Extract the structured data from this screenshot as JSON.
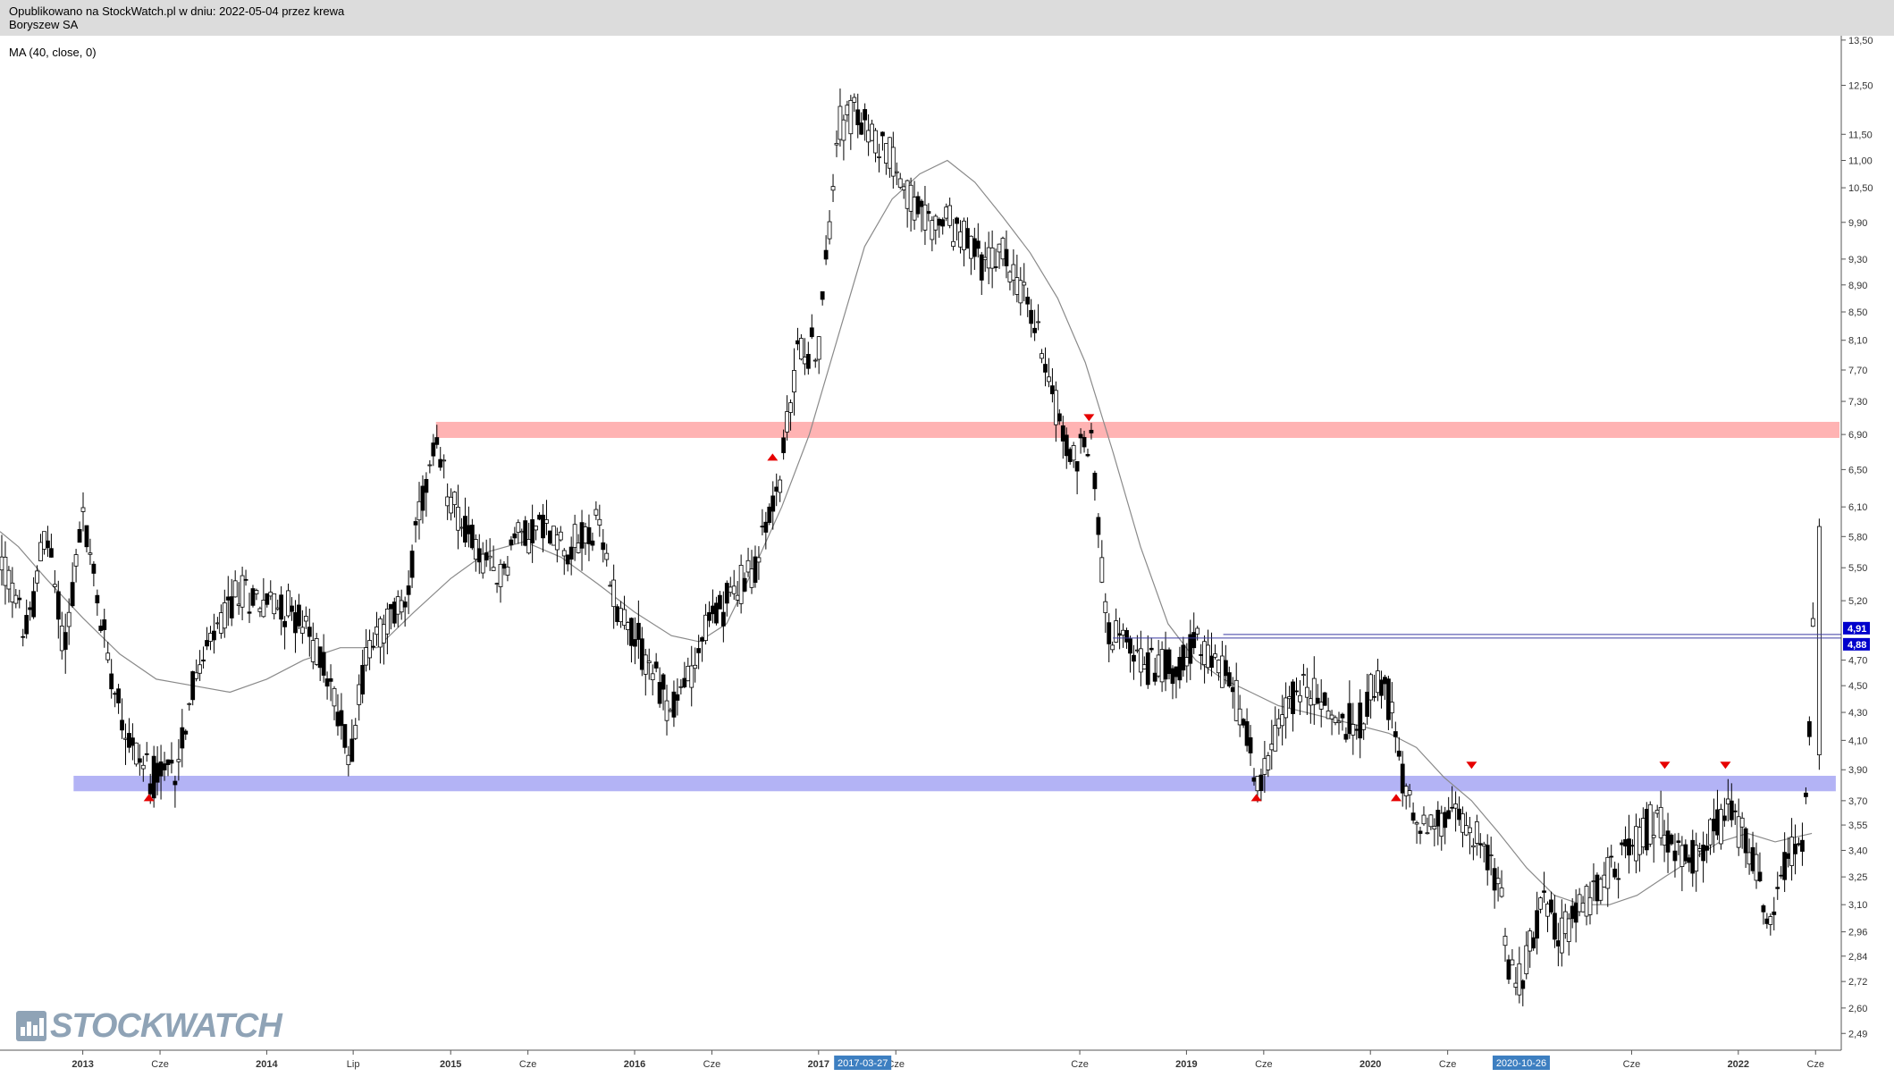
{
  "header": {
    "published_line": "Opublikowano na StockWatch.pl w dniu: 2022-05-04 przez krewa",
    "instrument": "Boryszew SA"
  },
  "indicator_label": "MA (40, close, 0)",
  "logo_text": "STOCKWATCH",
  "colors": {
    "resistance_zone": "#ffb3b3",
    "support_zone": "#b3b3f5",
    "horizontal_line": "#3a3aa0",
    "price_tag": "#0000cc",
    "date_tag": "#3d7fc1",
    "arrow": "#e60000",
    "candles": "#000000",
    "ma_line": "#8a8a8a"
  },
  "chart_data": {
    "type": "candlestick",
    "frequency": "weekly",
    "y_scale": "log",
    "ylim": [
      2.42,
      13.6
    ],
    "y_ticks": [
      "13,50",
      "12,50",
      "11,50",
      "11,00",
      "10,50",
      "9,90",
      "9,30",
      "8,90",
      "8,50",
      "8,10",
      "7,70",
      "7,30",
      "6,90",
      "6,50",
      "6,10",
      "5,80",
      "5,50",
      "5,20",
      "4,91",
      "4,88",
      "4,70",
      "4,50",
      "4,30",
      "4,10",
      "3,90",
      "3,70",
      "3,55",
      "3,40",
      "3,25",
      "3,10",
      "2,96",
      "2,84",
      "2,72",
      "2,60",
      "2,49"
    ],
    "y_tick_values": [
      13.5,
      12.5,
      11.5,
      11.0,
      10.5,
      9.9,
      9.3,
      8.9,
      8.5,
      8.1,
      7.7,
      7.3,
      6.9,
      6.5,
      6.1,
      5.8,
      5.5,
      5.2,
      4.91,
      4.88,
      4.7,
      4.5,
      4.3,
      4.1,
      3.9,
      3.7,
      3.55,
      3.4,
      3.25,
      3.1,
      2.96,
      2.84,
      2.72,
      2.6,
      2.49
    ],
    "highlighted_prices": [
      {
        "label": "4,91",
        "value": 4.91
      },
      {
        "label": "4,88",
        "value": 4.88
      }
    ],
    "time_range": [
      2012.55,
      2022.55
    ],
    "x_labels": [
      {
        "label": "2013",
        "t": 2013.0,
        "bold": true
      },
      {
        "label": "Cze",
        "t": 2013.42
      },
      {
        "label": "2014",
        "t": 2014.0,
        "bold": true
      },
      {
        "label": "Lip",
        "t": 2014.47
      },
      {
        "label": "2015",
        "t": 2015.0,
        "bold": true
      },
      {
        "label": "Cze",
        "t": 2015.42
      },
      {
        "label": "2016",
        "t": 2016.0,
        "bold": true
      },
      {
        "label": "Cze",
        "t": 2016.42
      },
      {
        "label": "2017",
        "t": 2017.0,
        "bold": true
      },
      {
        "label": "Cze",
        "t": 2017.42
      },
      {
        "label": "Cze",
        "t": 2018.42
      },
      {
        "label": "2019",
        "t": 2019.0,
        "bold": true
      },
      {
        "label": "Cze",
        "t": 2019.42
      },
      {
        "label": "2020",
        "t": 2020.0,
        "bold": true
      },
      {
        "label": "Cze",
        "t": 2020.42
      },
      {
        "label": "Cze",
        "t": 2021.42
      },
      {
        "label": "2022",
        "t": 2022.0,
        "bold": true
      },
      {
        "label": "Cze",
        "t": 2022.42
      }
    ],
    "date_tags": [
      {
        "label": "2017-03-27",
        "t": 2017.24
      },
      {
        "label": "2020-10-26",
        "t": 2020.82
      }
    ],
    "price_path": [
      [
        2012.55,
        5.6
      ],
      [
        2012.7,
        4.9
      ],
      [
        2012.8,
        5.9
      ],
      [
        2012.9,
        4.8
      ],
      [
        2013.0,
        6.0
      ],
      [
        2013.1,
        5.0
      ],
      [
        2013.25,
        4.1
      ],
      [
        2013.38,
        3.85
      ],
      [
        2013.5,
        3.9
      ],
      [
        2013.6,
        4.5
      ],
      [
        2013.75,
        5.0
      ],
      [
        2013.85,
        5.3
      ],
      [
        2014.0,
        5.2
      ],
      [
        2014.15,
        5.1
      ],
      [
        2014.3,
        4.7
      ],
      [
        2014.38,
        4.35
      ],
      [
        2014.45,
        4.0
      ],
      [
        2014.55,
        4.8
      ],
      [
        2014.75,
        5.2
      ],
      [
        2014.85,
        6.2
      ],
      [
        2014.92,
        6.7
      ],
      [
        2015.0,
        6.2
      ],
      [
        2015.1,
        5.8
      ],
      [
        2015.25,
        5.35
      ],
      [
        2015.35,
        5.8
      ],
      [
        2015.5,
        5.9
      ],
      [
        2015.65,
        5.7
      ],
      [
        2015.8,
        5.9
      ],
      [
        2015.9,
        5.2
      ],
      [
        2016.0,
        4.9
      ],
      [
        2016.1,
        4.6
      ],
      [
        2016.2,
        4.3
      ],
      [
        2016.3,
        4.6
      ],
      [
        2016.4,
        5.0
      ],
      [
        2016.55,
        5.3
      ],
      [
        2016.65,
        5.5
      ],
      [
        2016.72,
        5.9
      ],
      [
        2016.8,
        6.5
      ],
      [
        2016.88,
        7.9
      ],
      [
        2016.95,
        8.0
      ],
      [
        2017.0,
        8.0
      ],
      [
        2017.05,
        9.5
      ],
      [
        2017.1,
        11.7
      ],
      [
        2017.2,
        11.9
      ],
      [
        2017.28,
        11.5
      ],
      [
        2017.38,
        11.2
      ],
      [
        2017.48,
        10.4
      ],
      [
        2017.58,
        9.9
      ],
      [
        2017.7,
        9.9
      ],
      [
        2017.8,
        9.6
      ],
      [
        2017.9,
        9.2
      ],
      [
        2018.0,
        9.4
      ],
      [
        2018.08,
        9.0
      ],
      [
        2018.15,
        8.5
      ],
      [
        2018.22,
        8.0
      ],
      [
        2018.3,
        7.2
      ],
      [
        2018.36,
        6.6
      ],
      [
        2018.42,
        6.7
      ],
      [
        2018.48,
        6.9
      ],
      [
        2018.52,
        5.9
      ],
      [
        2018.57,
        5.0
      ],
      [
        2018.67,
        4.8
      ],
      [
        2018.8,
        4.65
      ],
      [
        2018.95,
        4.7
      ],
      [
        2019.05,
        4.8
      ],
      [
        2019.12,
        4.75
      ],
      [
        2019.2,
        4.6
      ],
      [
        2019.3,
        4.3
      ],
      [
        2019.38,
        3.85
      ],
      [
        2019.45,
        3.95
      ],
      [
        2019.55,
        4.4
      ],
      [
        2019.65,
        4.5
      ],
      [
        2019.75,
        4.35
      ],
      [
        2019.85,
        4.2
      ],
      [
        2019.95,
        4.25
      ],
      [
        2020.03,
        4.6
      ],
      [
        2020.1,
        4.4
      ],
      [
        2020.18,
        3.8
      ],
      [
        2020.28,
        3.55
      ],
      [
        2020.38,
        3.55
      ],
      [
        2020.48,
        3.6
      ],
      [
        2020.55,
        3.55
      ],
      [
        2020.62,
        3.4
      ],
      [
        2020.7,
        3.2
      ],
      [
        2020.75,
        2.8
      ],
      [
        2020.8,
        2.7
      ],
      [
        2020.88,
        2.95
      ],
      [
        2020.95,
        3.1
      ],
      [
        2021.05,
        2.95
      ],
      [
        2021.15,
        3.1
      ],
      [
        2021.25,
        3.2
      ],
      [
        2021.35,
        3.35
      ],
      [
        2021.45,
        3.45
      ],
      [
        2021.55,
        3.6
      ],
      [
        2021.65,
        3.4
      ],
      [
        2021.75,
        3.35
      ],
      [
        2021.85,
        3.5
      ],
      [
        2021.95,
        3.6
      ],
      [
        2022.05,
        3.45
      ],
      [
        2022.12,
        3.2
      ],
      [
        2022.18,
        2.95
      ],
      [
        2022.25,
        3.35
      ],
      [
        2022.32,
        3.45
      ],
      [
        2022.36,
        3.5
      ],
      [
        2022.38,
        3.9
      ],
      [
        2022.4,
        4.6
      ],
      [
        2022.42,
        5.7
      ]
    ],
    "ma_path": [
      [
        2012.55,
        5.85
      ],
      [
        2012.65,
        5.7
      ],
      [
        2012.8,
        5.4
      ],
      [
        2013.0,
        5.05
      ],
      [
        2013.2,
        4.75
      ],
      [
        2013.4,
        4.55
      ],
      [
        2013.6,
        4.5
      ],
      [
        2013.8,
        4.45
      ],
      [
        2014.0,
        4.55
      ],
      [
        2014.2,
        4.7
      ],
      [
        2014.4,
        4.8
      ],
      [
        2014.6,
        4.8
      ],
      [
        2014.8,
        5.1
      ],
      [
        2015.0,
        5.4
      ],
      [
        2015.2,
        5.65
      ],
      [
        2015.4,
        5.75
      ],
      [
        2015.6,
        5.6
      ],
      [
        2015.8,
        5.35
      ],
      [
        2016.0,
        5.1
      ],
      [
        2016.2,
        4.9
      ],
      [
        2016.35,
        4.85
      ],
      [
        2016.5,
        5.0
      ],
      [
        2016.65,
        5.5
      ],
      [
        2016.8,
        6.1
      ],
      [
        2016.95,
        6.9
      ],
      [
        2017.1,
        8.1
      ],
      [
        2017.25,
        9.5
      ],
      [
        2017.4,
        10.3
      ],
      [
        2017.55,
        10.75
      ],
      [
        2017.7,
        11.0
      ],
      [
        2017.85,
        10.6
      ],
      [
        2018.0,
        10.0
      ],
      [
        2018.15,
        9.4
      ],
      [
        2018.3,
        8.7
      ],
      [
        2018.45,
        7.8
      ],
      [
        2018.6,
        6.7
      ],
      [
        2018.75,
        5.7
      ],
      [
        2018.9,
        5.0
      ],
      [
        2019.05,
        4.7
      ],
      [
        2019.2,
        4.55
      ],
      [
        2019.35,
        4.45
      ],
      [
        2019.5,
        4.35
      ],
      [
        2019.65,
        4.3
      ],
      [
        2019.8,
        4.25
      ],
      [
        2019.95,
        4.2
      ],
      [
        2020.1,
        4.15
      ],
      [
        2020.25,
        4.05
      ],
      [
        2020.4,
        3.85
      ],
      [
        2020.55,
        3.7
      ],
      [
        2020.7,
        3.5
      ],
      [
        2020.85,
        3.3
      ],
      [
        2021.0,
        3.15
      ],
      [
        2021.15,
        3.1
      ],
      [
        2021.3,
        3.1
      ],
      [
        2021.45,
        3.15
      ],
      [
        2021.6,
        3.25
      ],
      [
        2021.75,
        3.35
      ],
      [
        2021.9,
        3.45
      ],
      [
        2022.05,
        3.5
      ],
      [
        2022.2,
        3.45
      ],
      [
        2022.4,
        3.5
      ]
    ],
    "zones": [
      {
        "name": "resistance",
        "from": 6.86,
        "to": 7.05,
        "t_start": 2014.92,
        "t_end": 2022.55
      },
      {
        "name": "support",
        "from": 3.76,
        "to": 3.86,
        "t_start": 2012.95,
        "t_end": 2022.53
      }
    ],
    "horizontal_lines": [
      {
        "value": 4.91,
        "t_start": 2019.2
      },
      {
        "value": 4.88,
        "t_start": 2018.6
      }
    ],
    "markers": [
      {
        "t": 2013.36,
        "price": 3.72,
        "dir": "up"
      },
      {
        "t": 2016.75,
        "price": 6.64,
        "dir": "up"
      },
      {
        "t": 2018.47,
        "price": 7.1,
        "dir": "down"
      },
      {
        "t": 2019.38,
        "price": 3.72,
        "dir": "up"
      },
      {
        "t": 2020.14,
        "price": 3.72,
        "dir": "up"
      },
      {
        "t": 2020.55,
        "price": 3.93,
        "dir": "down"
      },
      {
        "t": 2021.6,
        "price": 3.93,
        "dir": "down"
      },
      {
        "t": 2021.93,
        "price": 3.93,
        "dir": "down"
      }
    ]
  }
}
